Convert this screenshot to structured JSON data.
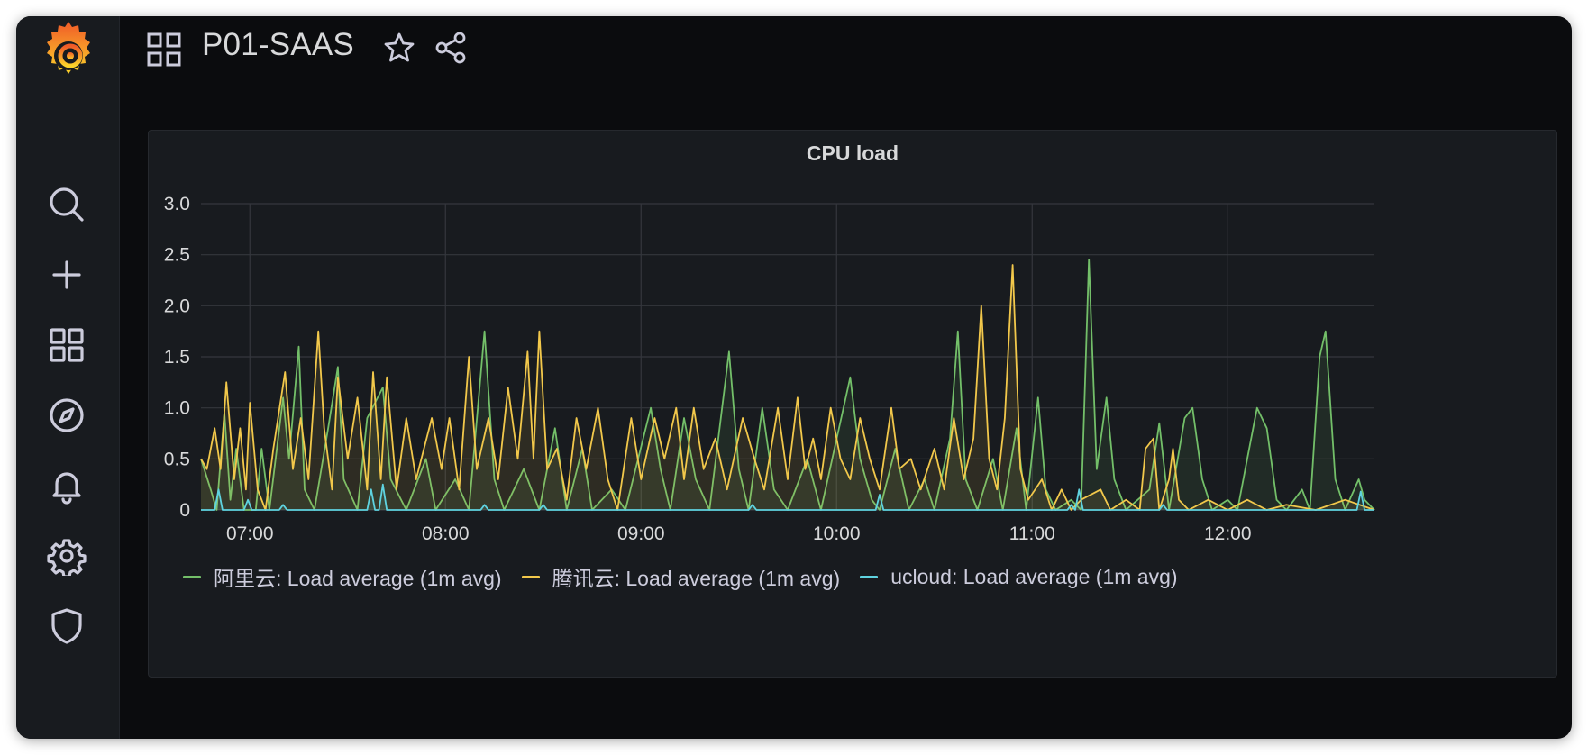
{
  "dashboard": {
    "title": "P01-SAAS"
  },
  "sidebar": {
    "items": [
      {
        "name": "search-icon"
      },
      {
        "name": "plus-icon"
      },
      {
        "name": "dashboards-icon"
      },
      {
        "name": "explore-compass-icon"
      },
      {
        "name": "alerting-bell-icon"
      },
      {
        "name": "configuration-gear-icon"
      },
      {
        "name": "server-admin-shield-icon"
      }
    ]
  },
  "colors": {
    "aliyun": "#73bf69",
    "tencent": "#fade2a",
    "tencent_line": "#f2c84b",
    "ucloud": "#5fd3e0",
    "grid": "#34373d",
    "text": "#d8d9da"
  },
  "chart_data": {
    "type": "line",
    "title": "CPU load",
    "x_ticks": [
      "07:00",
      "08:00",
      "09:00",
      "10:00",
      "11:00",
      "12:00"
    ],
    "y_ticks": [
      "0",
      "0.5",
      "1.0",
      "1.5",
      "2.0",
      "2.5",
      "3.0"
    ],
    "ylim": [
      0,
      3.0
    ],
    "xlim_hours": [
      6.75,
      12.75
    ],
    "legend_position": "bottom-left",
    "grid": true,
    "series": [
      {
        "name": "阿里云: Load average (1m avg)",
        "color": "#73bf69",
        "points": [
          [
            6.75,
            0.5
          ],
          [
            6.8,
            0.2
          ],
          [
            6.83,
            0.0
          ],
          [
            6.87,
            0.95
          ],
          [
            6.9,
            0.1
          ],
          [
            6.93,
            0.6
          ],
          [
            6.97,
            0.0
          ],
          [
            7.03,
            0.0
          ],
          [
            7.06,
            0.6
          ],
          [
            7.1,
            0.0
          ],
          [
            7.17,
            1.1
          ],
          [
            7.2,
            0.5
          ],
          [
            7.25,
            1.6
          ],
          [
            7.28,
            0.2
          ],
          [
            7.33,
            0.0
          ],
          [
            7.4,
            0.8
          ],
          [
            7.45,
            1.4
          ],
          [
            7.48,
            0.3
          ],
          [
            7.55,
            0.0
          ],
          [
            7.6,
            0.9
          ],
          [
            7.68,
            1.2
          ],
          [
            7.72,
            0.3
          ],
          [
            7.8,
            0.0
          ],
          [
            7.9,
            0.5
          ],
          [
            7.95,
            0.0
          ],
          [
            8.05,
            0.3
          ],
          [
            8.12,
            0.0
          ],
          [
            8.2,
            1.75
          ],
          [
            8.25,
            0.3
          ],
          [
            8.3,
            0.0
          ],
          [
            8.4,
            0.4
          ],
          [
            8.48,
            0.0
          ],
          [
            8.56,
            0.8
          ],
          [
            8.62,
            0.0
          ],
          [
            8.7,
            0.6
          ],
          [
            8.75,
            0.0
          ],
          [
            8.85,
            0.2
          ],
          [
            8.92,
            0.0
          ],
          [
            9.05,
            1.0
          ],
          [
            9.1,
            0.4
          ],
          [
            9.15,
            0.0
          ],
          [
            9.22,
            0.9
          ],
          [
            9.28,
            0.3
          ],
          [
            9.35,
            0.0
          ],
          [
            9.45,
            1.55
          ],
          [
            9.5,
            0.4
          ],
          [
            9.55,
            0.0
          ],
          [
            9.62,
            1.0
          ],
          [
            9.68,
            0.2
          ],
          [
            9.75,
            0.0
          ],
          [
            9.85,
            0.5
          ],
          [
            9.92,
            0.0
          ],
          [
            10.07,
            1.3
          ],
          [
            10.12,
            0.5
          ],
          [
            10.18,
            0.1
          ],
          [
            10.22,
            0.0
          ],
          [
            10.3,
            0.6
          ],
          [
            10.37,
            0.0
          ],
          [
            10.45,
            0.3
          ],
          [
            10.5,
            0.0
          ],
          [
            10.58,
            0.7
          ],
          [
            10.62,
            1.75
          ],
          [
            10.66,
            0.3
          ],
          [
            10.72,
            0.0
          ],
          [
            10.8,
            0.5
          ],
          [
            10.85,
            0.0
          ],
          [
            10.92,
            0.8
          ],
          [
            10.97,
            0.0
          ],
          [
            11.03,
            1.1
          ],
          [
            11.07,
            0.2
          ],
          [
            11.12,
            0.0
          ],
          [
            11.2,
            0.1
          ],
          [
            11.25,
            0.0
          ],
          [
            11.29,
            2.45
          ],
          [
            11.33,
            0.4
          ],
          [
            11.38,
            1.1
          ],
          [
            11.42,
            0.3
          ],
          [
            11.48,
            0.0
          ],
          [
            11.6,
            0.2
          ],
          [
            11.65,
            0.85
          ],
          [
            11.7,
            0.0
          ],
          [
            11.78,
            0.9
          ],
          [
            11.82,
            1.0
          ],
          [
            11.87,
            0.3
          ],
          [
            11.92,
            0.0
          ],
          [
            12.0,
            0.1
          ],
          [
            12.05,
            0.0
          ],
          [
            12.1,
            0.5
          ],
          [
            12.15,
            1.0
          ],
          [
            12.2,
            0.8
          ],
          [
            12.25,
            0.1
          ],
          [
            12.3,
            0.0
          ],
          [
            12.38,
            0.2
          ],
          [
            12.42,
            0.0
          ],
          [
            12.47,
            1.5
          ],
          [
            12.5,
            1.75
          ],
          [
            12.55,
            0.3
          ],
          [
            12.6,
            0.0
          ],
          [
            12.67,
            0.3
          ],
          [
            12.7,
            0.1
          ],
          [
            12.75,
            0.0
          ]
        ]
      },
      {
        "name": "腾讯云: Load average (1m avg)",
        "color": "#f2c84b",
        "points": [
          [
            6.75,
            0.5
          ],
          [
            6.78,
            0.4
          ],
          [
            6.82,
            0.8
          ],
          [
            6.85,
            0.4
          ],
          [
            6.88,
            1.25
          ],
          [
            6.92,
            0.3
          ],
          [
            6.95,
            0.8
          ],
          [
            6.98,
            0.2
          ],
          [
            7.0,
            1.05
          ],
          [
            7.04,
            0.2
          ],
          [
            7.08,
            0.0
          ],
          [
            7.12,
            0.6
          ],
          [
            7.18,
            1.35
          ],
          [
            7.22,
            0.4
          ],
          [
            7.26,
            0.9
          ],
          [
            7.3,
            0.3
          ],
          [
            7.35,
            1.75
          ],
          [
            7.38,
            0.8
          ],
          [
            7.42,
            0.2
          ],
          [
            7.45,
            1.3
          ],
          [
            7.5,
            0.5
          ],
          [
            7.55,
            1.1
          ],
          [
            7.6,
            0.2
          ],
          [
            7.63,
            1.35
          ],
          [
            7.67,
            0.3
          ],
          [
            7.7,
            1.3
          ],
          [
            7.75,
            0.2
          ],
          [
            7.8,
            0.9
          ],
          [
            7.85,
            0.3
          ],
          [
            7.93,
            0.9
          ],
          [
            7.98,
            0.4
          ],
          [
            8.02,
            0.9
          ],
          [
            8.07,
            0.2
          ],
          [
            8.12,
            1.5
          ],
          [
            8.16,
            0.4
          ],
          [
            8.22,
            0.9
          ],
          [
            8.27,
            0.3
          ],
          [
            8.32,
            1.2
          ],
          [
            8.37,
            0.5
          ],
          [
            8.42,
            1.55
          ],
          [
            8.45,
            0.5
          ],
          [
            8.48,
            1.75
          ],
          [
            8.52,
            0.4
          ],
          [
            8.57,
            0.6
          ],
          [
            8.62,
            0.1
          ],
          [
            8.67,
            0.9
          ],
          [
            8.72,
            0.4
          ],
          [
            8.78,
            1.0
          ],
          [
            8.83,
            0.3
          ],
          [
            8.88,
            0.0
          ],
          [
            8.95,
            0.9
          ],
          [
            9.0,
            0.3
          ],
          [
            9.07,
            0.9
          ],
          [
            9.12,
            0.5
          ],
          [
            9.18,
            1.0
          ],
          [
            9.22,
            0.3
          ],
          [
            9.27,
            1.0
          ],
          [
            9.32,
            0.4
          ],
          [
            9.38,
            0.7
          ],
          [
            9.44,
            0.2
          ],
          [
            9.52,
            0.9
          ],
          [
            9.58,
            0.5
          ],
          [
            9.63,
            0.2
          ],
          [
            9.7,
            1.0
          ],
          [
            9.75,
            0.3
          ],
          [
            9.8,
            1.1
          ],
          [
            9.84,
            0.4
          ],
          [
            9.88,
            0.7
          ],
          [
            9.92,
            0.3
          ],
          [
            9.97,
            1.0
          ],
          [
            10.02,
            0.5
          ],
          [
            10.07,
            0.3
          ],
          [
            10.12,
            0.9
          ],
          [
            10.17,
            0.5
          ],
          [
            10.22,
            0.2
          ],
          [
            10.28,
            1.0
          ],
          [
            10.32,
            0.4
          ],
          [
            10.38,
            0.5
          ],
          [
            10.43,
            0.2
          ],
          [
            10.5,
            0.6
          ],
          [
            10.55,
            0.2
          ],
          [
            10.6,
            0.9
          ],
          [
            10.65,
            0.3
          ],
          [
            10.7,
            0.7
          ],
          [
            10.74,
            2.0
          ],
          [
            10.78,
            0.5
          ],
          [
            10.82,
            0.2
          ],
          [
            10.86,
            0.9
          ],
          [
            10.9,
            2.4
          ],
          [
            10.94,
            0.4
          ],
          [
            10.98,
            0.1
          ],
          [
            11.05,
            0.3
          ],
          [
            11.1,
            0.0
          ],
          [
            11.15,
            0.2
          ],
          [
            11.2,
            0.0
          ],
          [
            11.25,
            0.1
          ],
          [
            11.35,
            0.2
          ],
          [
            11.4,
            0.0
          ],
          [
            11.48,
            0.1
          ],
          [
            11.55,
            0.0
          ],
          [
            11.58,
            0.6
          ],
          [
            11.62,
            0.7
          ],
          [
            11.65,
            0.0
          ],
          [
            11.7,
            0.3
          ],
          [
            11.72,
            0.6
          ],
          [
            11.75,
            0.1
          ],
          [
            11.8,
            0.0
          ],
          [
            11.9,
            0.1
          ],
          [
            12.0,
            0.0
          ],
          [
            12.1,
            0.1
          ],
          [
            12.2,
            0.0
          ],
          [
            12.3,
            0.05
          ],
          [
            12.45,
            0.0
          ],
          [
            12.6,
            0.1
          ],
          [
            12.75,
            0.0
          ]
        ]
      },
      {
        "name": "ucloud: Load average (1m avg)",
        "color": "#5fd3e0",
        "points": [
          [
            6.75,
            0.0
          ],
          [
            6.82,
            0.0
          ],
          [
            6.84,
            0.2
          ],
          [
            6.86,
            0.0
          ],
          [
            6.97,
            0.0
          ],
          [
            6.99,
            0.1
          ],
          [
            7.01,
            0.0
          ],
          [
            7.15,
            0.0
          ],
          [
            7.17,
            0.05
          ],
          [
            7.19,
            0.0
          ],
          [
            7.6,
            0.0
          ],
          [
            7.62,
            0.2
          ],
          [
            7.64,
            0.0
          ],
          [
            7.66,
            0.0
          ],
          [
            7.68,
            0.25
          ],
          [
            7.7,
            0.0
          ],
          [
            8.18,
            0.0
          ],
          [
            8.2,
            0.05
          ],
          [
            8.22,
            0.0
          ],
          [
            8.48,
            0.0
          ],
          [
            8.5,
            0.05
          ],
          [
            8.52,
            0.0
          ],
          [
            9.55,
            0.0
          ],
          [
            9.57,
            0.05
          ],
          [
            9.59,
            0.0
          ],
          [
            10.2,
            0.0
          ],
          [
            10.22,
            0.15
          ],
          [
            10.24,
            0.0
          ],
          [
            11.18,
            0.0
          ],
          [
            11.2,
            0.05
          ],
          [
            11.22,
            0.0
          ],
          [
            11.24,
            0.2
          ],
          [
            11.26,
            0.0
          ],
          [
            11.65,
            0.0
          ],
          [
            11.67,
            0.05
          ],
          [
            11.69,
            0.0
          ],
          [
            12.66,
            0.0
          ],
          [
            12.68,
            0.18
          ],
          [
            12.7,
            0.0
          ],
          [
            12.75,
            0.0
          ]
        ]
      }
    ]
  }
}
